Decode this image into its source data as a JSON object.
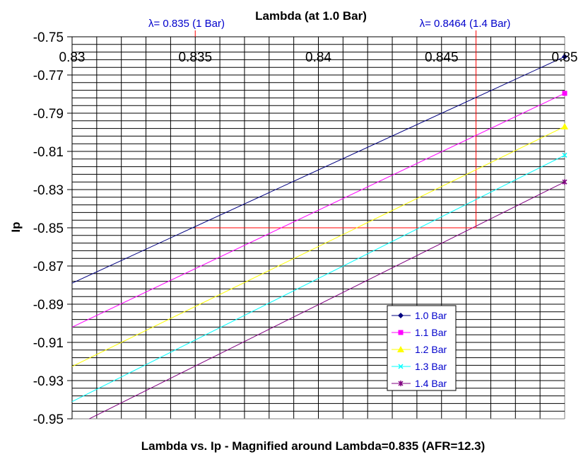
{
  "chart_data": {
    "type": "line",
    "title": "Lambda vs. Ip - Magnified around Lambda=0.835 (AFR=12.3)",
    "xlabel": "Lambda (at 1.0 Bar)",
    "ylabel": "Ip",
    "xlim": [
      0.83,
      0.85
    ],
    "ylim": [
      -0.95,
      -0.75
    ],
    "xticks": [
      "0.83",
      "0.835",
      "0.84",
      "0.845",
      "0.85"
    ],
    "yticks": [
      "-0.75",
      "-0.77",
      "-0.79",
      "-0.81",
      "-0.83",
      "-0.85",
      "-0.87",
      "-0.89",
      "-0.91",
      "-0.93",
      "-0.95"
    ],
    "grid": true,
    "legend_position": "bottom-right",
    "series": [
      {
        "name": "1.0 Bar",
        "color": "#000080",
        "marker": "diamond",
        "x": [
          0.83,
          0.85
        ],
        "y": [
          -0.879,
          -0.7604
        ]
      },
      {
        "name": "1.1 Bar",
        "color": "#ff00ff",
        "marker": "square",
        "x": [
          0.83,
          0.85
        ],
        "y": [
          -0.902,
          -0.7796
        ]
      },
      {
        "name": "1.2 Bar",
        "color": "#ffff00",
        "marker": "triangle",
        "x": [
          0.83,
          0.85
        ],
        "y": [
          -0.9226,
          -0.797
        ]
      },
      {
        "name": "1.3 Bar",
        "color": "#00ffff",
        "marker": "x",
        "x": [
          0.83,
          0.85
        ],
        "y": [
          -0.941,
          -0.812
        ]
      },
      {
        "name": "1.4 Bar",
        "color": "#800080",
        "marker": "star",
        "x": [
          0.83,
          0.85
        ],
        "y": [
          -0.9545,
          -0.826
        ]
      }
    ],
    "annotations": [
      {
        "text": "λ= 0.835 (1 Bar)",
        "x": 0.835,
        "y": -0.85
      },
      {
        "text": "λ= 0.8464 (1.4 Bar)",
        "x": 0.8464,
        "y": -0.85
      }
    ],
    "reference_color": "#ff0000"
  }
}
